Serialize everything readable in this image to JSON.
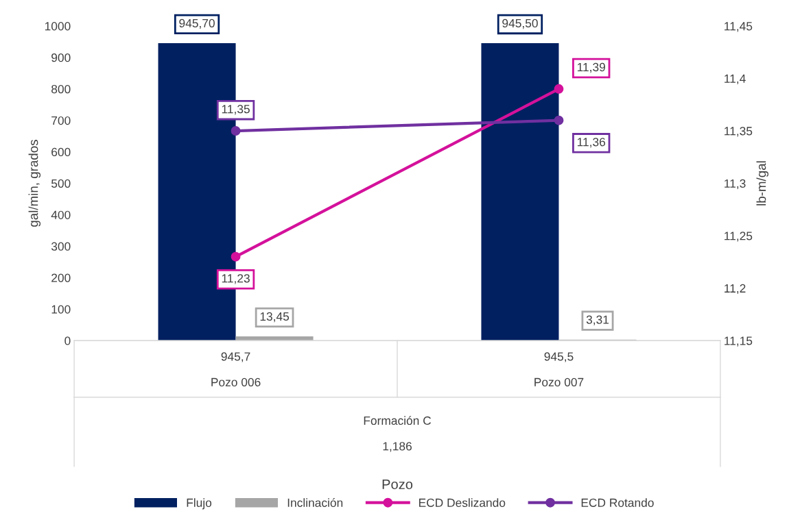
{
  "chart_data": {
    "type": "bar",
    "categories": [
      "945,7\n\nPozo 006",
      "945,5\n\nPozo 007"
    ],
    "ylabel": "gal/min, grados",
    "y2label": "lb-m/gal",
    "annotations": [
      "Formación C\n\n1,186",
      "Pozo"
    ],
    "series": [
      {
        "name": "Flujo",
        "color": "#002060",
        "values": [
          945.7,
          945.5
        ],
        "value_labels": [
          "945,70",
          "945,50"
        ]
      },
      {
        "name": "Inclinación",
        "color": "#a6a6a6",
        "values": [
          13.45,
          3.31
        ],
        "value_labels": [
          "13,45",
          "3,31"
        ]
      },
      {
        "name": "ECD Deslizando",
        "type": "line",
        "axis": "y2",
        "color": "#d4119b",
        "values": [
          11.23,
          11.39
        ],
        "value_labels": [
          "11,23",
          "11,39"
        ]
      },
      {
        "name": "ECD Rotando",
        "type": "line",
        "axis": "y2",
        "color": "#7030a0",
        "values": [
          11.35,
          11.36
        ],
        "value_labels": [
          "11,35",
          "11,36"
        ]
      }
    ],
    "ylim": [
      0,
      1000
    ],
    "yticks": [
      0,
      100,
      200,
      300,
      400,
      500,
      600,
      700,
      800,
      900,
      1000
    ],
    "y2lim": [
      11.15,
      11.45
    ],
    "y2ticks": [
      {
        "value": 11.15,
        "label": "11,15"
      },
      {
        "value": 11.2,
        "label": "11,2"
      },
      {
        "value": 11.25,
        "label": "11,25"
      },
      {
        "value": 11.3,
        "label": "11,3"
      },
      {
        "value": 11.35,
        "label": "11,35"
      },
      {
        "value": 11.4,
        "label": "11,4"
      },
      {
        "value": 11.45,
        "label": "11,45"
      }
    ],
    "marker": "circle",
    "grid": false,
    "legend": "bottom"
  }
}
